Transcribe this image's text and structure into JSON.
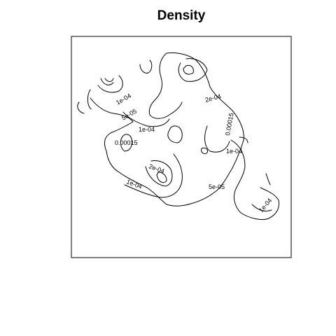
{
  "chart_data": {
    "type": "contour",
    "title": "Density",
    "xlabel": "",
    "ylabel": "",
    "axes_shown": false,
    "grid": false,
    "levels": [
      "5e-05",
      "1e-04",
      "0.00015",
      "2e-04"
    ],
    "contour_labels": [
      {
        "text": "1e-04"
      },
      {
        "text": "5e-05"
      },
      {
        "text": "1e-04"
      },
      {
        "text": "0.00015"
      },
      {
        "text": "2e-04"
      },
      {
        "text": "0.00015"
      },
      {
        "text": "1e-04"
      },
      {
        "text": "2e-04"
      },
      {
        "text": "1e-04"
      },
      {
        "text": "5e-05"
      },
      {
        "text": "1e-04"
      }
    ],
    "line_color": "#000000"
  }
}
